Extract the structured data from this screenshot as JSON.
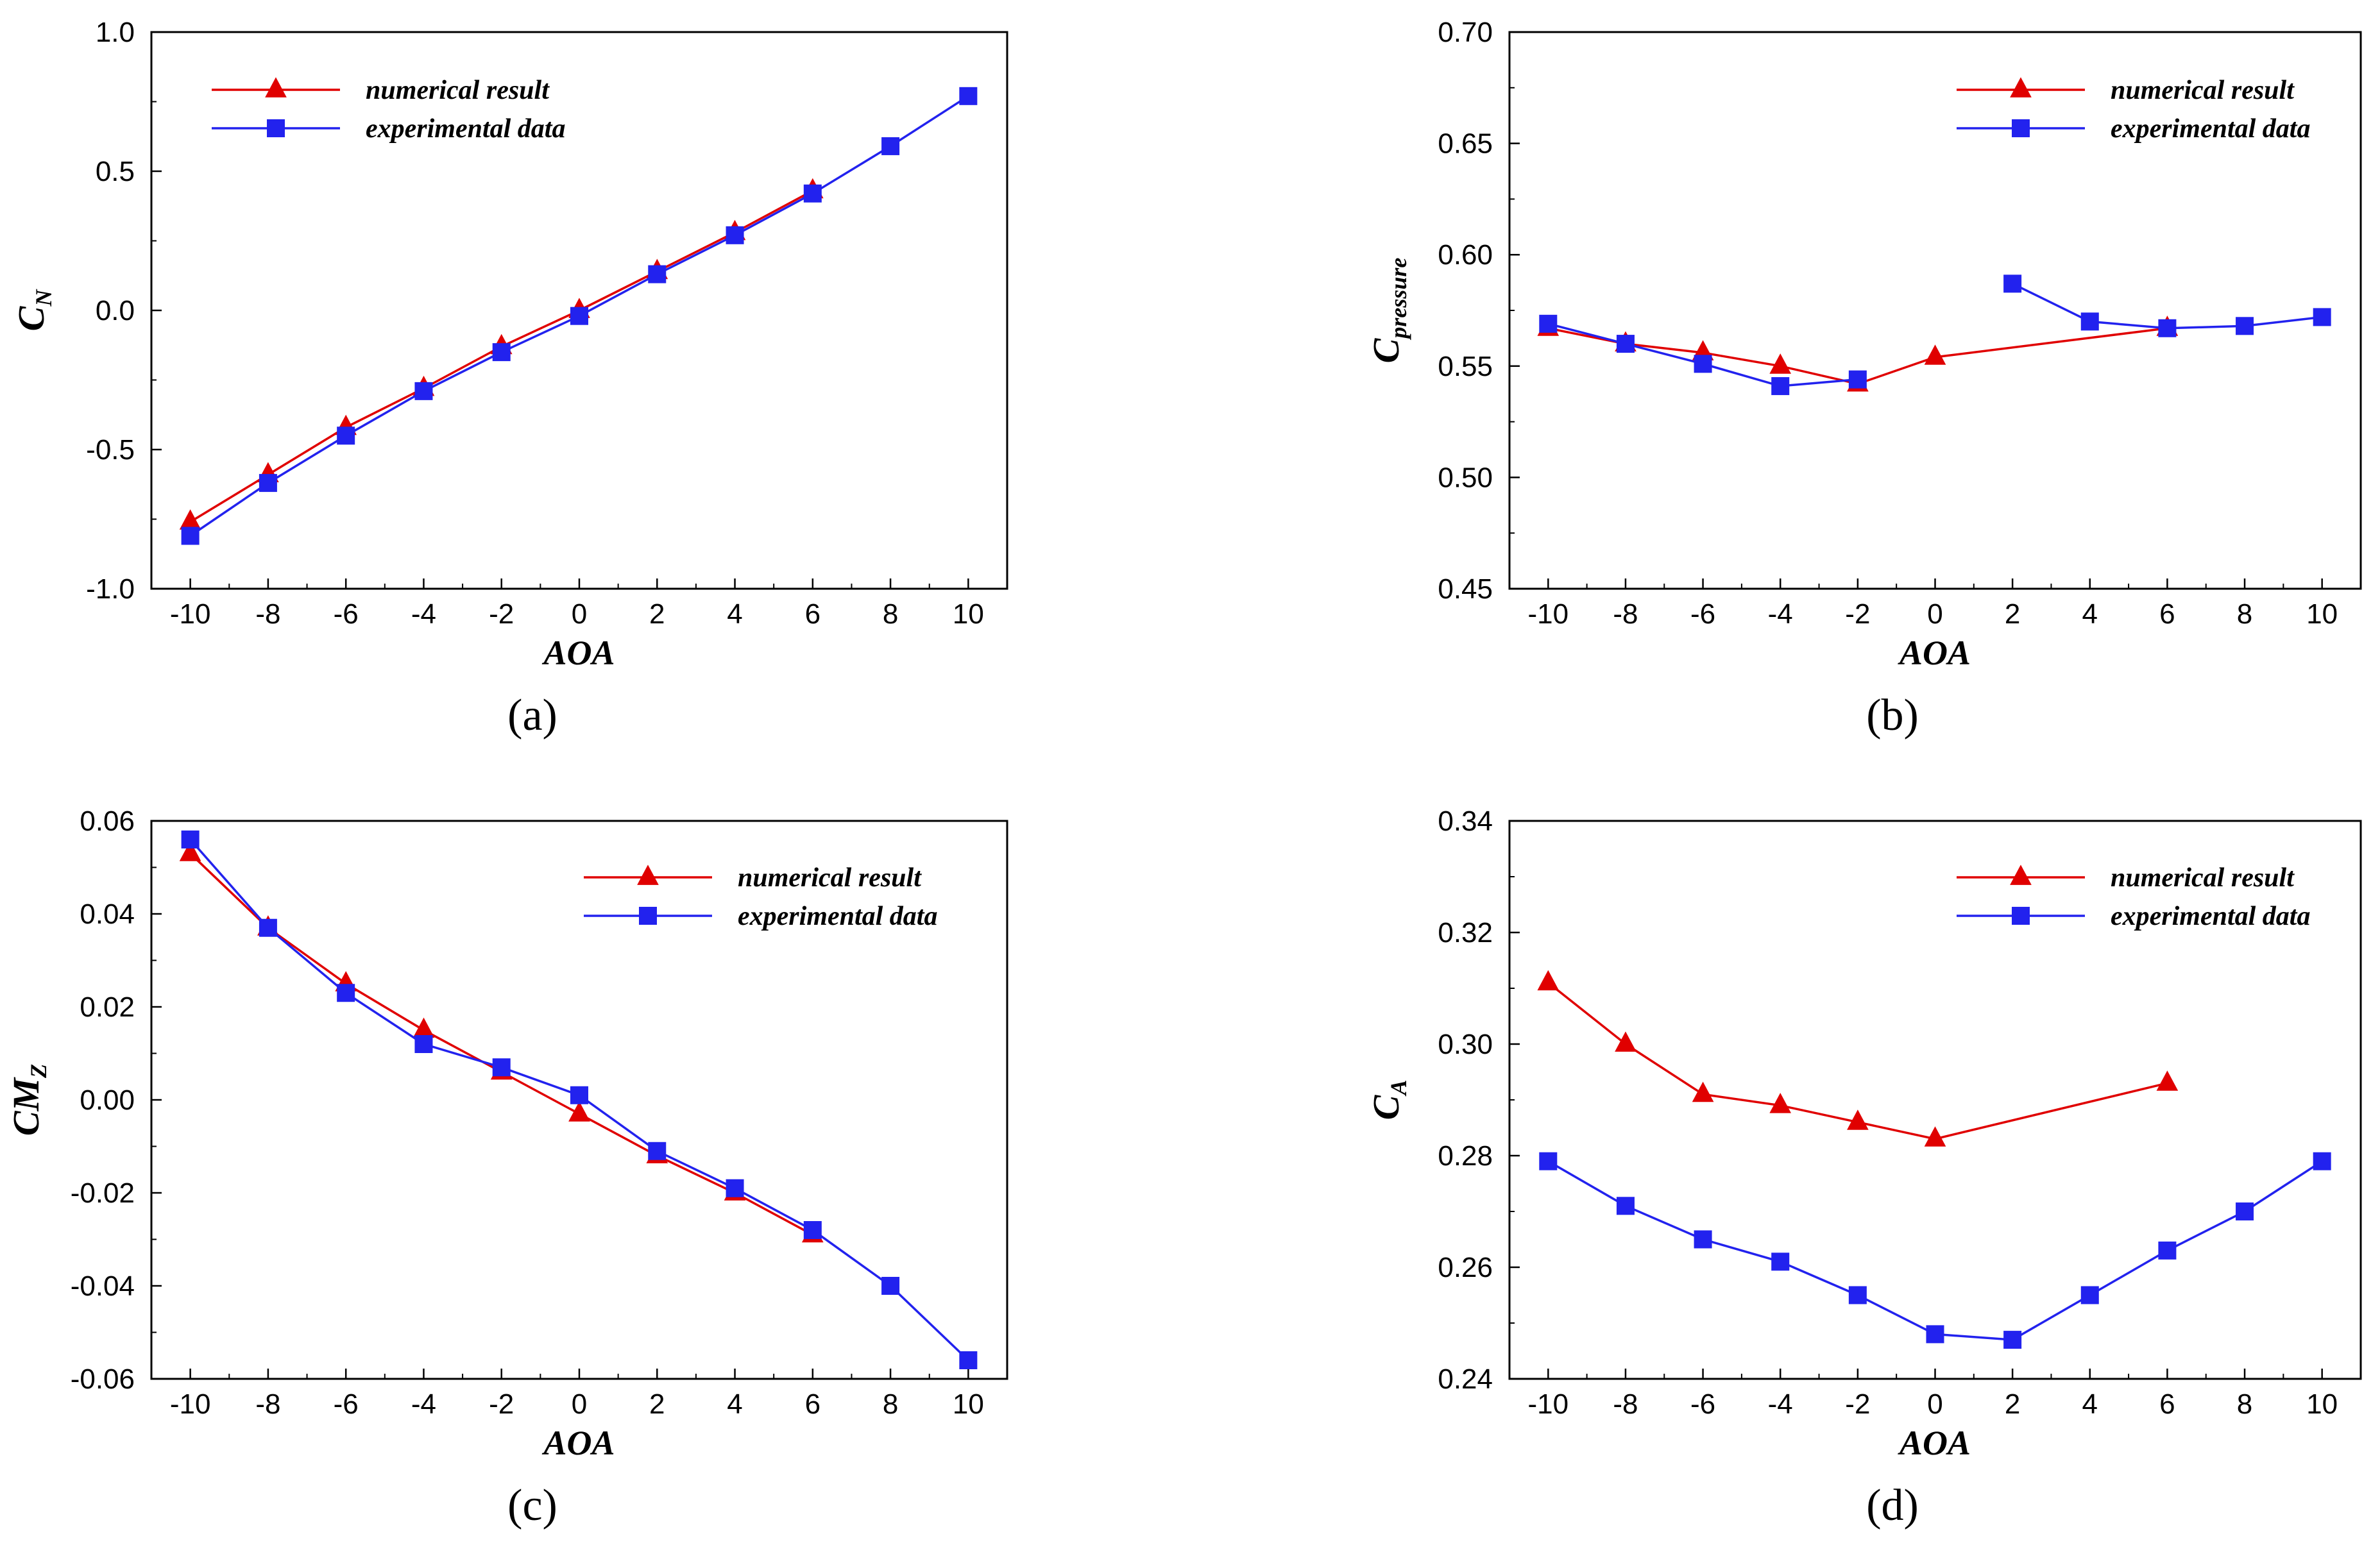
{
  "chart_data": [
    {
      "type": "line",
      "panel_label": "(a)",
      "xlabel": "AOA",
      "ylabel": "C",
      "ylabel_sub": "N",
      "x": [
        -10,
        -8,
        -6,
        -4,
        -2,
        0,
        2,
        4,
        6,
        8,
        10
      ],
      "xlim": [
        -11,
        11
      ],
      "ylim": [
        -1.0,
        1.0
      ],
      "xticks": [
        -10,
        -8,
        -6,
        -4,
        -2,
        0,
        2,
        4,
        6,
        8,
        10
      ],
      "xtick_labels": [
        "-10",
        "-8",
        "-6",
        "-4",
        "-2",
        "0",
        "2",
        "4",
        "6",
        "8",
        "10"
      ],
      "yticks": [
        -1.0,
        -0.5,
        0.0,
        0.5,
        1.0
      ],
      "ytick_labels": [
        "-1.0",
        "-0.5",
        "0.0",
        "0.5",
        "1.0"
      ],
      "legend_position": "top-left",
      "series": [
        {
          "name": "numerical result",
          "color": "#e00000",
          "marker": "triangle",
          "x": [
            -10,
            -8,
            -6,
            -4,
            -2,
            0,
            2,
            4,
            6
          ],
          "values": [
            -0.76,
            -0.59,
            -0.42,
            -0.28,
            -0.13,
            0.0,
            0.14,
            0.28,
            0.43
          ]
        },
        {
          "name": "experimental data",
          "color": "#2222ee",
          "marker": "square",
          "x": [
            -10,
            -8,
            -6,
            -4,
            -2,
            0,
            2,
            4,
            6,
            8,
            10
          ],
          "values": [
            -0.81,
            -0.62,
            -0.45,
            -0.29,
            -0.15,
            -0.02,
            0.13,
            0.27,
            0.42,
            0.59,
            0.77
          ]
        }
      ]
    },
    {
      "type": "line",
      "panel_label": "(b)",
      "xlabel": "AOA",
      "ylabel": "C",
      "ylabel_sub": "pressure",
      "x": [
        -10,
        -8,
        -6,
        -4,
        -2,
        0,
        2,
        4,
        6,
        8,
        10
      ],
      "xlim": [
        -11,
        11
      ],
      "ylim": [
        0.45,
        0.7
      ],
      "xticks": [
        -10,
        -8,
        -6,
        -4,
        -2,
        0,
        2,
        4,
        6,
        8,
        10
      ],
      "xtick_labels": [
        "-10",
        "-8",
        "-6",
        "-4",
        "-2",
        "0",
        "2",
        "4",
        "6",
        "8",
        "10"
      ],
      "yticks": [
        0.45,
        0.5,
        0.55,
        0.6,
        0.65,
        0.7
      ],
      "ytick_labels": [
        "0.45",
        "0.50",
        "0.55",
        "0.60",
        "0.65",
        "0.70"
      ],
      "legend_position": "top-right",
      "series": [
        {
          "name": "numerical result",
          "color": "#e00000",
          "marker": "triangle",
          "x": [
            -10,
            -8,
            -6,
            -4,
            -2,
            0,
            6
          ],
          "values": [
            0.567,
            0.56,
            0.556,
            0.55,
            0.542,
            0.554,
            0.567
          ]
        },
        {
          "name": "experimental data",
          "color": "#2222ee",
          "marker": "square",
          "x": [
            -10,
            -8,
            -6,
            -4,
            -2,
            null,
            2,
            4,
            6,
            8,
            10
          ],
          "values": [
            0.569,
            0.56,
            0.551,
            0.541,
            0.544,
            null,
            0.587,
            0.57,
            0.567,
            0.568,
            0.572
          ]
        }
      ]
    },
    {
      "type": "line",
      "panel_label": "(c)",
      "xlabel": "AOA",
      "ylabel": "CM",
      "ylabel_sub": "Z",
      "x": [
        -10,
        -8,
        -6,
        -4,
        -2,
        0,
        2,
        4,
        6,
        8,
        10
      ],
      "xlim": [
        -11,
        11
      ],
      "ylim": [
        -0.06,
        0.06
      ],
      "xticks": [
        -10,
        -8,
        -6,
        -4,
        -2,
        0,
        2,
        4,
        6,
        8,
        10
      ],
      "xtick_labels": [
        "-10",
        "-8",
        "-6",
        "-4",
        "-2",
        "0",
        "2",
        "4",
        "6",
        "8",
        "10"
      ],
      "yticks": [
        -0.06,
        -0.04,
        -0.02,
        0.0,
        0.02,
        0.04,
        0.06
      ],
      "ytick_labels": [
        "-0.06",
        "-0.04",
        "-0.02",
        "0.00",
        "0.02",
        "0.04",
        "0.06"
      ],
      "legend_position": "top-right",
      "series": [
        {
          "name": "numerical result",
          "color": "#e00000",
          "marker": "triangle",
          "x": [
            -10,
            -8,
            -6,
            -4,
            -2,
            0,
            2,
            4,
            6
          ],
          "values": [
            0.053,
            0.037,
            0.025,
            0.015,
            0.006,
            -0.003,
            -0.012,
            -0.02,
            -0.029
          ]
        },
        {
          "name": "experimental data",
          "color": "#2222ee",
          "marker": "square",
          "x": [
            -10,
            -8,
            -6,
            -4,
            -2,
            0,
            2,
            4,
            6,
            8,
            10
          ],
          "values": [
            0.056,
            0.037,
            0.023,
            0.012,
            0.007,
            0.001,
            -0.011,
            -0.019,
            -0.028,
            -0.04,
            -0.056
          ]
        }
      ]
    },
    {
      "type": "line",
      "panel_label": "(d)",
      "xlabel": "AOA",
      "ylabel": "C",
      "ylabel_sub": "A",
      "x": [
        -10,
        -8,
        -6,
        -4,
        -2,
        0,
        2,
        4,
        6,
        8,
        10
      ],
      "xlim": [
        -11,
        11
      ],
      "ylim": [
        0.24,
        0.34
      ],
      "xticks": [
        -10,
        -8,
        -6,
        -4,
        -2,
        0,
        2,
        4,
        6,
        8,
        10
      ],
      "xtick_labels": [
        "-10",
        "-8",
        "-6",
        "-4",
        "-2",
        "0",
        "2",
        "4",
        "6",
        "8",
        "10"
      ],
      "yticks": [
        0.24,
        0.26,
        0.28,
        0.3,
        0.32,
        0.34
      ],
      "ytick_labels": [
        "0.24",
        "0.26",
        "0.28",
        "0.30",
        "0.32",
        "0.34"
      ],
      "legend_position": "top-right",
      "series": [
        {
          "name": "numerical result",
          "color": "#e00000",
          "marker": "triangle",
          "x": [
            -10,
            -8,
            -6,
            -4,
            -2,
            0,
            6
          ],
          "values": [
            0.311,
            0.3,
            0.291,
            0.289,
            0.286,
            0.283,
            0.293
          ]
        },
        {
          "name": "experimental data",
          "color": "#2222ee",
          "marker": "square",
          "x": [
            -10,
            -8,
            -6,
            -4,
            -2,
            0,
            2,
            4,
            6,
            8,
            10
          ],
          "values": [
            0.279,
            0.271,
            0.265,
            0.261,
            0.255,
            0.248,
            0.247,
            0.255,
            0.263,
            0.27,
            0.279
          ]
        }
      ]
    }
  ]
}
